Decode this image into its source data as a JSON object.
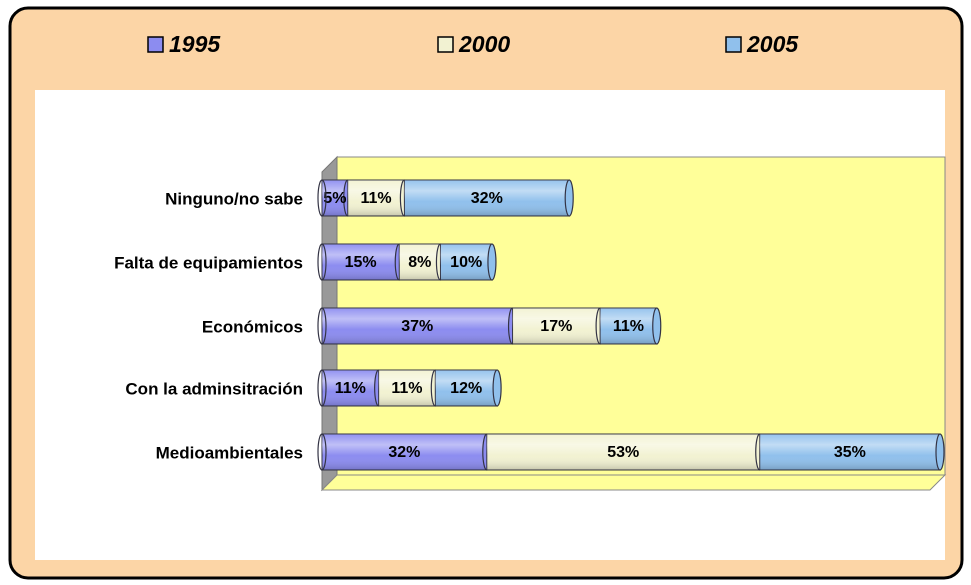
{
  "chart_data": {
    "type": "stacked-bar-horizontal",
    "categories": [
      "Ninguno/no sabe",
      "Falta de equipamientos",
      "Económicos",
      "Con la adminsitración",
      "Medioambientales"
    ],
    "series": [
      {
        "name": "1995",
        "color": "#8c8cf0",
        "values": [
          5,
          15,
          37,
          11,
          32
        ],
        "value_labels": [
          "5%",
          "15%",
          "37%",
          "11%",
          "32%"
        ]
      },
      {
        "name": "2000",
        "color": "#f2f2d2",
        "values": [
          11,
          8,
          17,
          11,
          53
        ],
        "value_labels": [
          "11%",
          "8%",
          "17%",
          "11%",
          "53%"
        ]
      },
      {
        "name": "2005",
        "color": "#90c0ec",
        "values": [
          32,
          10,
          11,
          12,
          35
        ],
        "value_labels": [
          "32%",
          "10%",
          "11%",
          "12%",
          "35%"
        ]
      }
    ],
    "legend": "top"
  }
}
